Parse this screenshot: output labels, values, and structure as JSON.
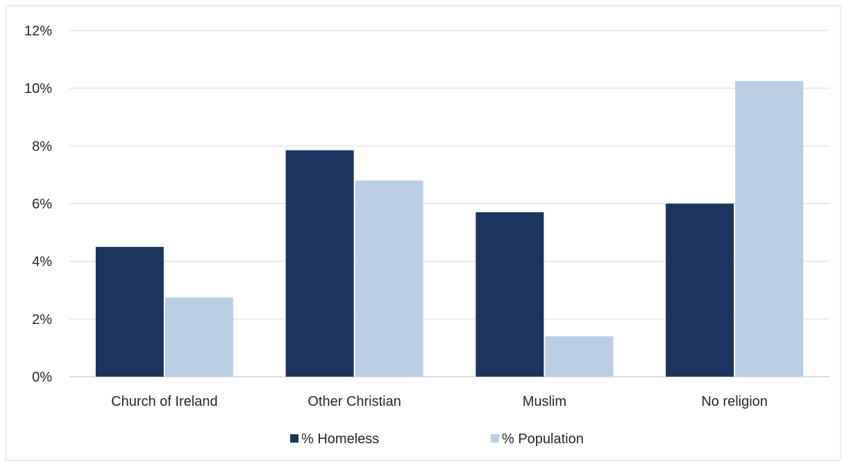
{
  "chart_data": {
    "type": "bar",
    "title": "",
    "xlabel": "",
    "ylabel": "",
    "categories": [
      "Church of Ireland",
      "Other Christian",
      "Muslim",
      "No religion"
    ],
    "series": [
      {
        "name": "% Homeless",
        "values": [
          4.5,
          7.85,
          5.7,
          6.0
        ],
        "color": "#1c355e"
      },
      {
        "name": "% Population",
        "values": [
          2.75,
          6.8,
          1.4,
          10.25
        ],
        "color": "#b9cde5"
      }
    ],
    "ylim": [
      0,
      12
    ],
    "yticks": [
      0,
      2,
      4,
      6,
      8,
      10,
      12
    ],
    "ytick_labels": [
      "0%",
      "2%",
      "4%",
      "6%",
      "8%",
      "10%",
      "12%"
    ],
    "grid": true,
    "legend_position": "bottom"
  }
}
